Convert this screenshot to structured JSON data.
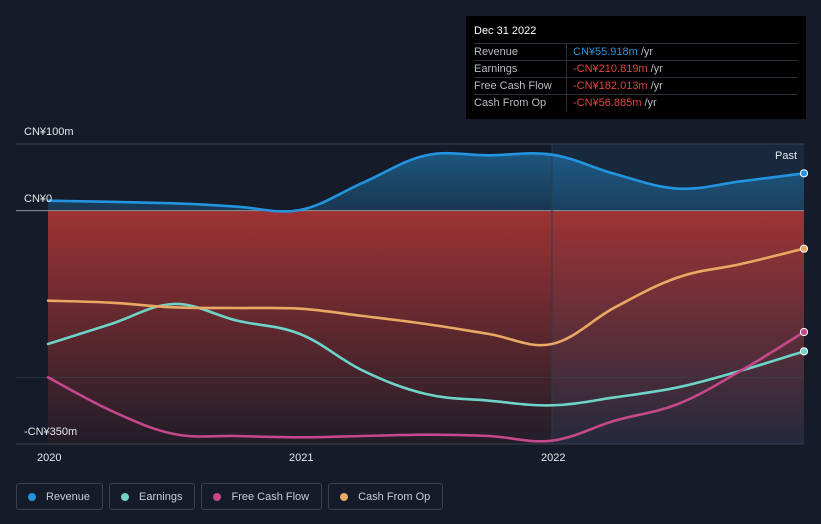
{
  "tooltip": {
    "date": "Dec 31 2022",
    "rows": [
      {
        "label": "Revenue",
        "value": "CN¥55.918m",
        "unit": "/yr",
        "color": "#2394df"
      },
      {
        "label": "Earnings",
        "value": "-CN¥210.819m",
        "unit": "/yr",
        "color": "#e64141"
      },
      {
        "label": "Free Cash Flow",
        "value": "-CN¥182.013m",
        "unit": "/yr",
        "color": "#e64141"
      },
      {
        "label": "Cash From Op",
        "value": "-CN¥56.885m",
        "unit": "/yr",
        "color": "#e64141"
      }
    ]
  },
  "past_label": "Past",
  "legend": [
    {
      "label": "Revenue",
      "color": "#2394df"
    },
    {
      "label": "Earnings",
      "color": "#6ed3c8"
    },
    {
      "label": "Free Cash Flow",
      "color": "#c4488a"
    },
    {
      "label": "Cash From Op",
      "color": "#e9a863"
    }
  ],
  "chart_data": {
    "type": "line",
    "y_tick_labels": [
      "CN¥100m",
      "CN¥0",
      "-CN¥350m"
    ],
    "y_ticks": [
      100,
      0,
      -350
    ],
    "ylim": [
      -350,
      100
    ],
    "x_tick_labels": [
      "2020",
      "2021",
      "2022"
    ],
    "x_ticks": [
      2020,
      2021,
      2022
    ],
    "xlim": [
      2020,
      2023
    ],
    "highlight_start": 2022,
    "series": [
      {
        "name": "Revenue",
        "color": "#2394df",
        "x": [
          2020,
          2020.5,
          2020.75,
          2021,
          2021.25,
          2021.5,
          2021.75,
          2022,
          2022.25,
          2022.5,
          2022.75,
          2023
        ],
        "y": [
          15,
          11,
          6,
          1,
          42,
          83,
          83,
          84,
          55,
          33,
          44,
          56
        ]
      },
      {
        "name": "Earnings",
        "color": "#6ed3c8",
        "x": [
          2020,
          2020.25,
          2020.5,
          2020.75,
          2021,
          2021.25,
          2021.5,
          2021.75,
          2022,
          2022.25,
          2022.5,
          2022.75,
          2023
        ],
        "y": [
          -200,
          -170,
          -140,
          -165,
          -185,
          -240,
          -275,
          -285,
          -292,
          -280,
          -265,
          -240,
          -211
        ]
      },
      {
        "name": "Free Cash Flow",
        "color": "#c4488a",
        "x": [
          2020,
          2020.25,
          2020.5,
          2020.75,
          2021,
          2021.25,
          2021.5,
          2021.75,
          2022,
          2022.25,
          2022.5,
          2022.75,
          2023
        ],
        "y": [
          -250,
          -300,
          -335,
          -338,
          -340,
          -338,
          -336,
          -338,
          -345,
          -315,
          -290,
          -240,
          -182
        ]
      },
      {
        "name": "Cash From Op",
        "color": "#e9a863",
        "x": [
          2020,
          2020.25,
          2020.5,
          2020.75,
          2021,
          2021.25,
          2021.5,
          2021.75,
          2022,
          2022.25,
          2022.5,
          2022.75,
          2023
        ],
        "y": [
          -135,
          -138,
          -145,
          -146,
          -147,
          -158,
          -170,
          -185,
          -200,
          -145,
          -100,
          -80,
          -57
        ]
      }
    ]
  }
}
